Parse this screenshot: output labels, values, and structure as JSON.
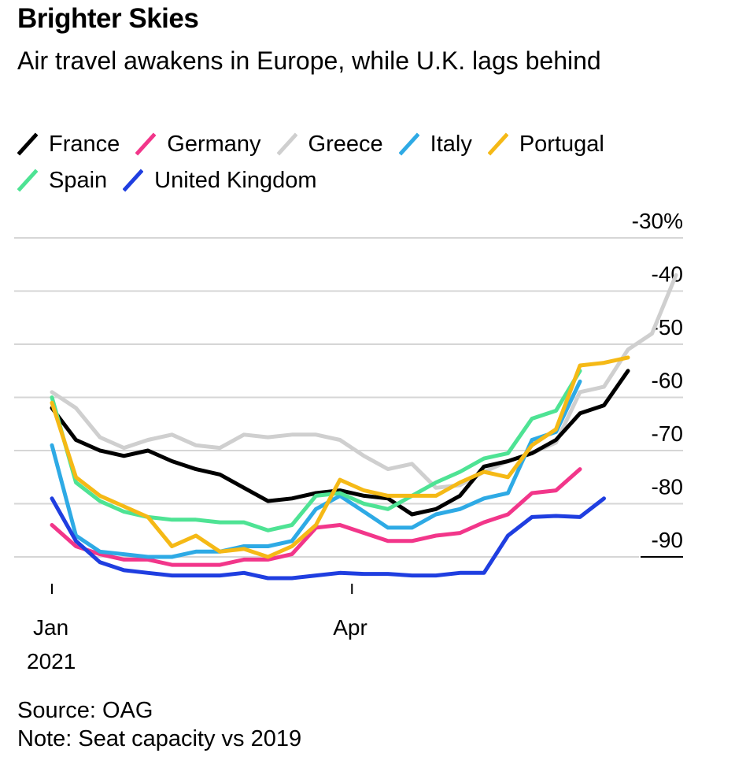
{
  "title": "Brighter Skies",
  "subtitle": "Air travel awakens in Europe, while U.K. lags behind",
  "source": "Source: OAG",
  "note": "Note: Seat capacity vs 2019",
  "chart_data": {
    "type": "line",
    "y_ticks": [
      -30,
      -40,
      -50,
      -60,
      -70,
      -80,
      -90
    ],
    "y_tick_labels": [
      "-30%",
      "-40",
      "-50",
      "-60",
      "-70",
      "-80",
      "-90"
    ],
    "ylim": [
      -90,
      -30
    ],
    "x_ticks": [
      {
        "label": "Jan",
        "year": "2021",
        "index": 0
      },
      {
        "label": "Apr",
        "index": 12.5
      }
    ],
    "grid": true,
    "legend_position": "top",
    "series": [
      {
        "name": "France",
        "color": "#000000",
        "values": [
          -62,
          -68,
          -70,
          -71,
          -70,
          -72,
          -73.5,
          -74.5,
          -77,
          -79.5,
          -79,
          -78,
          -77.5,
          -78.5,
          -79,
          -82,
          -81,
          -78.5,
          -73,
          -72,
          -70.5,
          -68,
          -63,
          -61.5,
          -55
        ]
      },
      {
        "name": "Germany",
        "color": "#f2368a",
        "values": [
          -84,
          -88,
          -89.5,
          -90.5,
          -90.5,
          -91.5,
          -91.5,
          -91.5,
          -90.5,
          -90.5,
          -89.5,
          -84.5,
          -84,
          -85.5,
          -87,
          -87,
          -86,
          -85.5,
          -83.5,
          -82,
          -78,
          -77.5,
          -73.5
        ]
      },
      {
        "name": "Greece",
        "color": "#cfcfcf",
        "values": [
          -59,
          -62,
          -67.5,
          -69.5,
          -68,
          -67,
          -69,
          -69.5,
          -67,
          -67.5,
          -67,
          -67,
          -68,
          -71,
          -73.5,
          -72.5,
          -77,
          -76.5,
          -74,
          -72,
          -70.5,
          -68.5,
          -59,
          -58,
          -51,
          -48,
          -37
        ]
      },
      {
        "name": "Italy",
        "color": "#2eaae5",
        "values": [
          -69,
          -86,
          -89,
          -89.5,
          -90,
          -90,
          -89,
          -89,
          -88,
          -88,
          -87,
          -81,
          -78.5,
          -81.5,
          -84.5,
          -84.5,
          -82,
          -81,
          -79,
          -78,
          -68,
          -66.5,
          -57
        ]
      },
      {
        "name": "Portugal",
        "color": "#f5b916",
        "values": [
          -61,
          -75,
          -78.5,
          -80.5,
          -82.5,
          -88,
          -86,
          -89,
          -88.5,
          -90,
          -88,
          -84,
          -75.5,
          -77.5,
          -78.5,
          -78.5,
          -78.5,
          -76,
          -74,
          -75,
          -69,
          -66,
          -54,
          -53.5,
          -52.5
        ]
      },
      {
        "name": "Spain",
        "color": "#4ee394",
        "values": [
          -60,
          -76,
          -79.5,
          -81.5,
          -82.5,
          -83,
          -83,
          -83.5,
          -83.5,
          -85,
          -84,
          -78.5,
          -78,
          -80,
          -81,
          -78.5,
          -76,
          -74,
          -71.5,
          -70.5,
          -64,
          -62.5,
          -55
        ]
      },
      {
        "name": "United Kingdom",
        "color": "#1f3ee0",
        "values": [
          -79,
          -87,
          -91,
          -92.5,
          -93,
          -93.5,
          -93.5,
          -93.5,
          -93,
          -94,
          -94,
          -93.5,
          -93,
          -93.2,
          -93.2,
          -93.5,
          -93.5,
          -93,
          -93,
          -86,
          -82.5,
          -82.3,
          -82.5,
          -79
        ]
      }
    ]
  }
}
